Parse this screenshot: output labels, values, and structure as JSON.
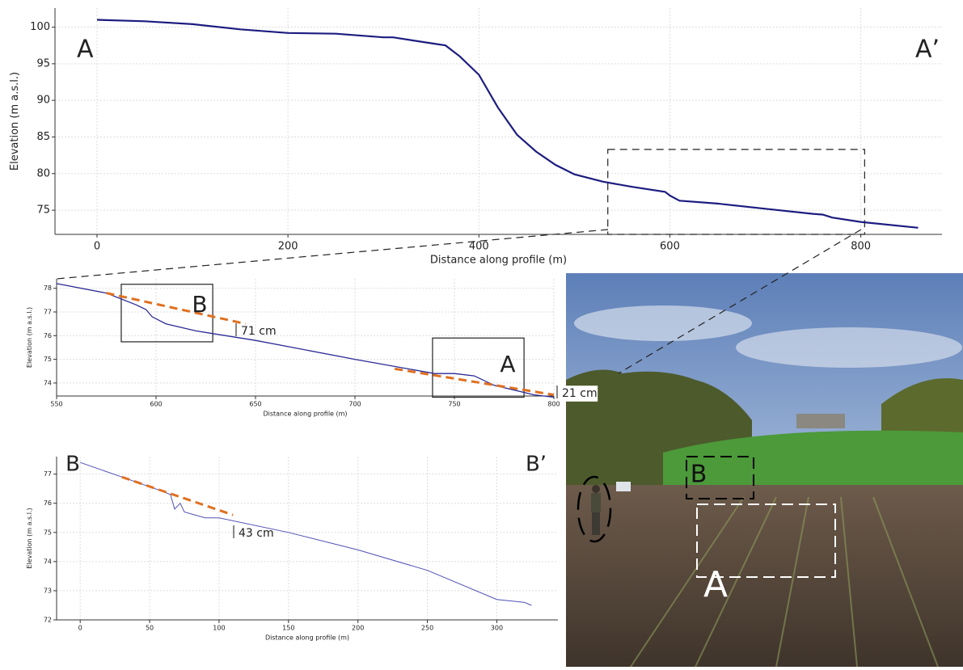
{
  "chart_data": [
    {
      "type": "line",
      "title_labels": [
        "A",
        "A’"
      ],
      "x_label": "Distance along profile (m)",
      "y_label": "Elevation (m a.s.l.)",
      "x": [
        0,
        50,
        100,
        150,
        200,
        250,
        300,
        310,
        350,
        365,
        380,
        400,
        420,
        440,
        460,
        480,
        500,
        530,
        560,
        595,
        600,
        610,
        650,
        700,
        750,
        760,
        770,
        800,
        860
      ],
      "series": [
        {
          "color": "#1c1c80",
          "values": [
            101,
            100.8,
            100.4,
            99.7,
            99.2,
            99.1,
            98.6,
            98.6,
            97.8,
            97.5,
            96,
            93.5,
            89,
            85.3,
            83,
            81.2,
            79.9,
            78.9,
            78.2,
            77.5,
            77,
            76.3,
            75.9,
            75.2,
            74.5,
            74.4,
            74,
            73.4,
            72.6
          ]
        }
      ],
      "regions": [
        {
          "xlim": [
            535,
            804
          ],
          "ylim": [
            71.7,
            83.3
          ],
          "style": "dashed"
        }
      ],
      "xlim": [
        -44,
        885
      ],
      "ylim": [
        71.7,
        102.6
      ],
      "xticks": [
        0,
        200,
        400,
        600,
        800
      ],
      "yticks": [
        75,
        80,
        85,
        90,
        95,
        100
      ],
      "grid": true
    },
    {
      "type": "line",
      "title_labels": [
        "B",
        "A",
        "71 cm",
        "21 cm"
      ],
      "x_label": "Distance along profile (m)",
      "y_label": "Elevation (m a.s.l.)",
      "x": [
        550,
        575,
        590,
        595,
        598,
        605,
        620,
        650,
        700,
        740,
        750,
        760,
        770,
        790,
        800
      ],
      "series": [
        {
          "color": "#2a2a96",
          "values": [
            78.2,
            77.8,
            77.3,
            77.1,
            76.8,
            76.5,
            76.2,
            75.8,
            75.0,
            74.4,
            74.4,
            74.3,
            73.9,
            73.5,
            73.4
          ]
        }
      ],
      "trend_lines": [
        {
          "x": [
            575,
            645
          ],
          "values": [
            77.8,
            76.5
          ]
        },
        {
          "x": [
            720,
            800
          ],
          "values": [
            74.6,
            73.5
          ]
        }
      ],
      "trend_color": "#e07020",
      "regions": [
        {
          "xlim": [
            582.5,
            628.5
          ],
          "ylim": [
            75.74,
            78.17
          ],
          "style": "solid"
        },
        {
          "xlim": [
            739,
            785
          ],
          "ylim": [
            73.4,
            75.9
          ],
          "style": "solid"
        }
      ],
      "xlim": [
        550,
        800
      ],
      "ylim": [
        73.45,
        78.4
      ],
      "xticks": [
        550,
        600,
        650,
        700,
        750,
        800
      ],
      "yticks": [
        74,
        75,
        76,
        77,
        78
      ],
      "grid": true
    },
    {
      "type": "line",
      "title_labels": [
        "B",
        "B’",
        "43 cm"
      ],
      "x_label": "Distance along profile (m)",
      "y_label": "Elevation (m a.s.l.)",
      "x": [
        0,
        30,
        60,
        65,
        68,
        72,
        75,
        90,
        100,
        150,
        200,
        250,
        300,
        320,
        325
      ],
      "series": [
        {
          "color": "#5050b8",
          "values": [
            77.4,
            76.9,
            76.4,
            76.3,
            75.8,
            76,
            75.7,
            75.5,
            75.5,
            75.0,
            74.4,
            73.7,
            72.7,
            72.6,
            72.5
          ]
        }
      ],
      "trend_lines": [
        {
          "x": [
            30,
            110
          ],
          "values": [
            76.9,
            75.6
          ]
        }
      ],
      "trend_color": "#e07020",
      "regions": [],
      "xlim": [
        -17,
        344
      ],
      "ylim": [
        72,
        77.6
      ],
      "xticks": [
        0,
        50,
        100,
        150,
        200,
        250,
        300
      ],
      "yticks": [
        72,
        73,
        74,
        75,
        76,
        77
      ],
      "grid": true
    }
  ],
  "photo": {
    "labels": [
      "B",
      "A"
    ]
  }
}
